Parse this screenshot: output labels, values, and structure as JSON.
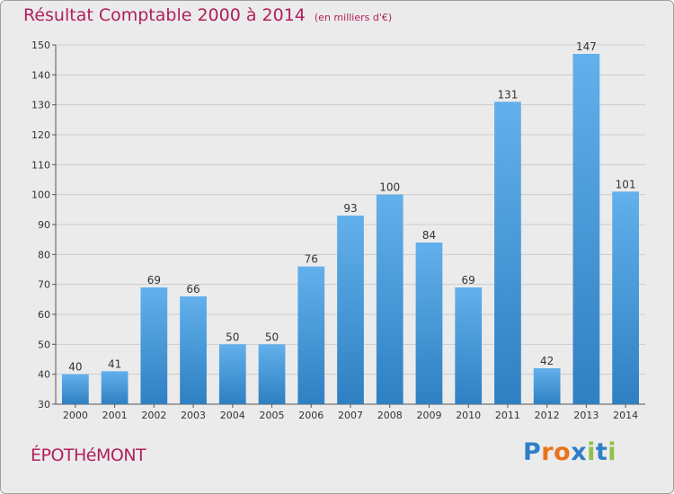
{
  "title": "Résultat Comptable 2000 à 2014",
  "unit_note": "(en milliers d'€)",
  "commune": "ÉPOTHéMONT",
  "logo": {
    "letters": [
      "P",
      "r",
      "o",
      "x",
      "i",
      "t",
      "i"
    ],
    "colors": [
      "#2f7fc8",
      "#e8731a",
      "#e8731a",
      "#2f7fc8",
      "#8bc34a",
      "#2f7fc8",
      "#8bc34a"
    ]
  },
  "colors": {
    "bar_light": "#62b0ec",
    "bar_dark": "#2f80c2",
    "title": "#b0205c",
    "grid": "#cccccc",
    "background": "#ebebeb"
  },
  "chart_data": {
    "type": "bar",
    "title": "Résultat Comptable 2000 à 2014",
    "xlabel": "",
    "ylabel": "",
    "ylim": [
      30,
      150
    ],
    "yticks": [
      30,
      40,
      50,
      60,
      70,
      80,
      90,
      100,
      110,
      120,
      130,
      140,
      150
    ],
    "grid": true,
    "categories": [
      "2000",
      "2001",
      "2002",
      "2003",
      "2004",
      "2005",
      "2006",
      "2007",
      "2008",
      "2009",
      "2010",
      "2011",
      "2012",
      "2013",
      "2014"
    ],
    "values": [
      40,
      41,
      69,
      66,
      50,
      50,
      76,
      93,
      100,
      84,
      69,
      131,
      42,
      147,
      101
    ]
  }
}
